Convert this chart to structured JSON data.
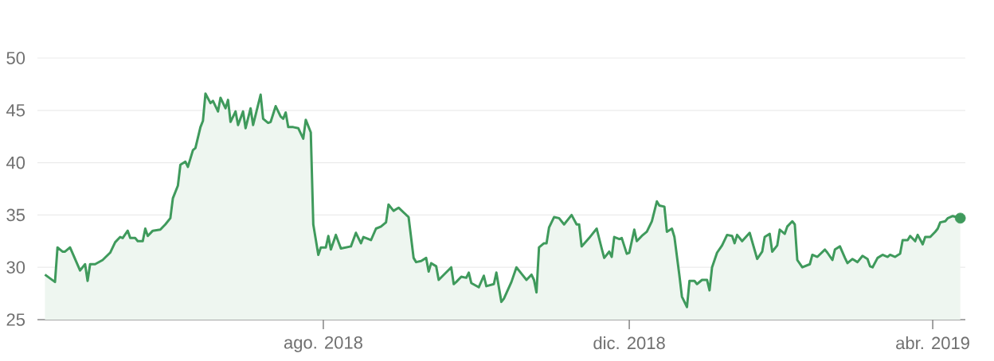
{
  "chart_data": {
    "type": "area",
    "color": "#3f9a5c",
    "grid": "y",
    "xlim": [
      "2018-04-09",
      "2019-04-14"
    ],
    "ylim": [
      25,
      50
    ],
    "xticks": [
      {
        "value": "2018-08-01",
        "label": "ago. 2018"
      },
      {
        "value": "2018-12-01",
        "label": "dic. 2018"
      },
      {
        "value": "2019-04-01",
        "label": "abr. 2019"
      }
    ],
    "yticks": [
      25,
      30,
      35,
      40,
      45,
      50
    ],
    "x": [
      "2018-04-12",
      "2018-04-16",
      "2018-04-17",
      "2018-04-19",
      "2018-04-20",
      "2018-04-22",
      "2018-04-26",
      "2018-04-28",
      "2018-04-29",
      "2018-04-30",
      "2018-05-02",
      "2018-05-05",
      "2018-05-08",
      "2018-05-10",
      "2018-05-12",
      "2018-05-13",
      "2018-05-15",
      "2018-05-16",
      "2018-05-18",
      "2018-05-19",
      "2018-05-21",
      "2018-05-22",
      "2018-05-23",
      "2018-05-25",
      "2018-05-28",
      "2018-05-30",
      "2018-06-01",
      "2018-06-02",
      "2018-06-04",
      "2018-06-05",
      "2018-06-07",
      "2018-06-08",
      "2018-06-10",
      "2018-06-11",
      "2018-06-13",
      "2018-06-14",
      "2018-06-15",
      "2018-06-17",
      "2018-06-18",
      "2018-06-20",
      "2018-06-21",
      "2018-06-23",
      "2018-06-24",
      "2018-06-25",
      "2018-06-27",
      "2018-06-28",
      "2018-06-30",
      "2018-07-01",
      "2018-07-03",
      "2018-07-04",
      "2018-07-07",
      "2018-07-08",
      "2018-07-10",
      "2018-07-11",
      "2018-07-13",
      "2018-07-15",
      "2018-07-16",
      "2018-07-17",
      "2018-07-18",
      "2018-07-20",
      "2018-07-22",
      "2018-07-24",
      "2018-07-25",
      "2018-07-27",
      "2018-07-28",
      "2018-07-30",
      "2018-07-31",
      "2018-08-02",
      "2018-08-03",
      "2018-08-04",
      "2018-08-06",
      "2018-08-08",
      "2018-08-12",
      "2018-08-14",
      "2018-08-16",
      "2018-08-17",
      "2018-08-20",
      "2018-08-22",
      "2018-08-24",
      "2018-08-26",
      "2018-08-27",
      "2018-08-29",
      "2018-08-31",
      "2018-09-04",
      "2018-09-06",
      "2018-09-07",
      "2018-09-09",
      "2018-09-11",
      "2018-09-12",
      "2018-09-13",
      "2018-09-15",
      "2018-09-16",
      "2018-09-21",
      "2018-09-22",
      "2018-09-23",
      "2018-09-25",
      "2018-09-27",
      "2018-09-28",
      "2018-09-29",
      "2018-10-02",
      "2018-10-04",
      "2018-10-05",
      "2018-10-08",
      "2018-10-09",
      "2018-10-11",
      "2018-10-12",
      "2018-10-15",
      "2018-10-17",
      "2018-10-19",
      "2018-10-21",
      "2018-10-23",
      "2018-10-24",
      "2018-10-25",
      "2018-10-26",
      "2018-10-28",
      "2018-10-29",
      "2018-10-30",
      "2018-11-01",
      "2018-11-03",
      "2018-11-05",
      "2018-11-08",
      "2018-11-10",
      "2018-11-11",
      "2018-11-12",
      "2018-11-15",
      "2018-11-16",
      "2018-11-18",
      "2018-11-20",
      "2018-11-21",
      "2018-11-23",
      "2018-11-24",
      "2018-11-25",
      "2018-11-27",
      "2018-11-28",
      "2018-11-30",
      "2018-12-01",
      "2018-12-03",
      "2018-12-04",
      "2018-12-06",
      "2018-12-08",
      "2018-12-10",
      "2018-12-12",
      "2018-12-13",
      "2018-12-15",
      "2018-12-16",
      "2018-12-18",
      "2018-12-19",
      "2018-12-21",
      "2018-12-22",
      "2018-12-24",
      "2018-12-25",
      "2018-12-27",
      "2018-12-28",
      "2018-12-30",
      "2019-01-01",
      "2019-01-02",
      "2019-01-03",
      "2019-01-05",
      "2019-01-07",
      "2019-01-09",
      "2019-01-11",
      "2019-01-12",
      "2019-01-13",
      "2019-01-15",
      "2019-01-18",
      "2019-01-21",
      "2019-01-23",
      "2019-01-24",
      "2019-01-26",
      "2019-01-27",
      "2019-01-29",
      "2019-01-30",
      "2019-02-01",
      "2019-02-02",
      "2019-02-04",
      "2019-02-05",
      "2019-02-06",
      "2019-02-08",
      "2019-02-11",
      "2019-02-12",
      "2019-02-14",
      "2019-02-17",
      "2019-02-18",
      "2019-02-20",
      "2019-02-21",
      "2019-02-23",
      "2019-02-25",
      "2019-02-26",
      "2019-02-28",
      "2019-03-02",
      "2019-03-04",
      "2019-03-06",
      "2019-03-07",
      "2019-03-08",
      "2019-03-10",
      "2019-03-12",
      "2019-03-14",
      "2019-03-15",
      "2019-03-17",
      "2019-03-19",
      "2019-03-20",
      "2019-03-22",
      "2019-03-23",
      "2019-03-25",
      "2019-03-26",
      "2019-03-28",
      "2019-03-29",
      "2019-03-31",
      "2019-04-02",
      "2019-04-03",
      "2019-04-04",
      "2019-04-06",
      "2019-04-07",
      "2019-04-09",
      "2019-04-12"
    ],
    "values": [
      29.3,
      28.6,
      31.9,
      31.5,
      31.5,
      31.9,
      29.7,
      30.3,
      28.7,
      30.3,
      30.3,
      30.7,
      31.4,
      32.4,
      32.9,
      32.8,
      33.5,
      32.8,
      32.8,
      32.5,
      32.5,
      33.7,
      33.0,
      33.5,
      33.6,
      34.1,
      34.7,
      36.6,
      37.8,
      39.8,
      40.1,
      39.6,
      41.2,
      41.4,
      43.4,
      44.0,
      46.6,
      45.7,
      45.9,
      44.9,
      46.2,
      45.2,
      46.0,
      43.9,
      44.9,
      43.6,
      44.9,
      43.3,
      45.2,
      43.6,
      46.5,
      44.2,
      43.8,
      43.9,
      45.4,
      44.4,
      44.2,
      44.8,
      43.4,
      43.4,
      43.3,
      42.3,
      44.1,
      42.9,
      34.1,
      31.2,
      31.9,
      31.9,
      33.0,
      31.7,
      33.1,
      31.8,
      32.0,
      33.3,
      32.3,
      32.9,
      32.6,
      33.7,
      33.9,
      34.3,
      36.0,
      35.4,
      35.7,
      34.8,
      30.9,
      30.5,
      30.6,
      30.9,
      29.6,
      30.4,
      30.1,
      28.8,
      30.0,
      28.4,
      28.6,
      29.1,
      29.0,
      29.5,
      28.5,
      28.1,
      29.2,
      28.2,
      28.4,
      29.5,
      26.7,
      27.0,
      28.6,
      30.0,
      29.4,
      28.8,
      29.3,
      28.8,
      27.6,
      31.9,
      32.3,
      32.3,
      33.8,
      34.8,
      34.7,
      34.1,
      35.0,
      34.1,
      34.1,
      32.0,
      32.8,
      33.1,
      33.7,
      31.8,
      30.9,
      31.5,
      31.0,
      32.9,
      32.7,
      32.8,
      31.3,
      31.4,
      33.6,
      32.5,
      33.0,
      33.4,
      34.4,
      36.3,
      35.9,
      35.8,
      33.4,
      33.7,
      32.9,
      29.2,
      27.2,
      26.2,
      28.7,
      28.7,
      28.4,
      28.8,
      28.8,
      27.8,
      30.0,
      31.4,
      32.1,
      33.1,
      33.0,
      32.3,
      33.1,
      32.5,
      33.3,
      30.8,
      31.5,
      32.9,
      33.2,
      31.5,
      32.1,
      33.6,
      33.2,
      33.9,
      34.4,
      34.1,
      30.7,
      30.0,
      30.3,
      31.2,
      31.0,
      31.7,
      31.4,
      30.7,
      31.7,
      32.0,
      30.9,
      30.4,
      30.8,
      30.5,
      31.1,
      30.8,
      30.1,
      30.0,
      30.9,
      31.2,
      31.0,
      31.2,
      31.0,
      31.3,
      32.6,
      32.6,
      33.0,
      32.5,
      33.1,
      32.2,
      32.9,
      32.9,
      33.4,
      33.7,
      34.3,
      34.4,
      34.7,
      34.9,
      34.7
    ]
  }
}
